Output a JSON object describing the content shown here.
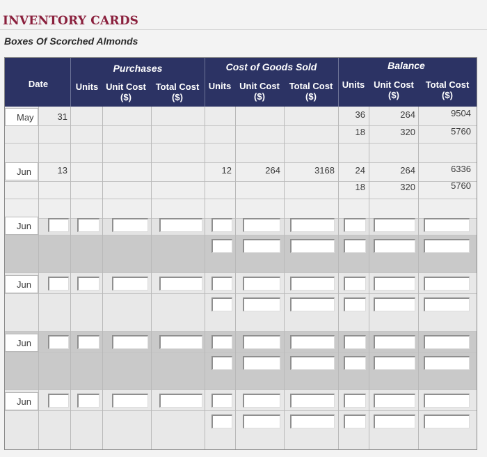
{
  "page": {
    "title": "INVENTORY CARDS",
    "subtitle": "Boxes Of Scorched Almonds"
  },
  "table": {
    "date_header": "Date",
    "groups": {
      "purchases": "Purchases",
      "cogs": "Cost of Goods Sold",
      "balance": "Balance"
    },
    "sub": {
      "units": "Units",
      "unit_cost_l1": "Unit Cost",
      "unit_cost_l2": "($)",
      "total_cost_l1": "Total Cost",
      "total_cost_l2": "($)"
    },
    "rows": [
      {
        "month": "May",
        "day": "31",
        "balance": [
          {
            "units": "36",
            "unit_cost": "264",
            "total_cost": "9504"
          },
          {
            "units": "18",
            "unit_cost": "320",
            "total_cost": "5760"
          }
        ]
      },
      {
        "month": "Jun",
        "day": "13",
        "cogs": {
          "units": "12",
          "unit_cost": "264",
          "total_cost": "3168"
        },
        "balance": [
          {
            "units": "24",
            "unit_cost": "264",
            "total_cost": "6336"
          },
          {
            "units": "18",
            "unit_cost": "320",
            "total_cost": "5760"
          }
        ]
      },
      {
        "month": "Jun"
      },
      {
        "month": "Jun"
      },
      {
        "month": "Jun"
      },
      {
        "month": "Jun"
      }
    ]
  }
}
